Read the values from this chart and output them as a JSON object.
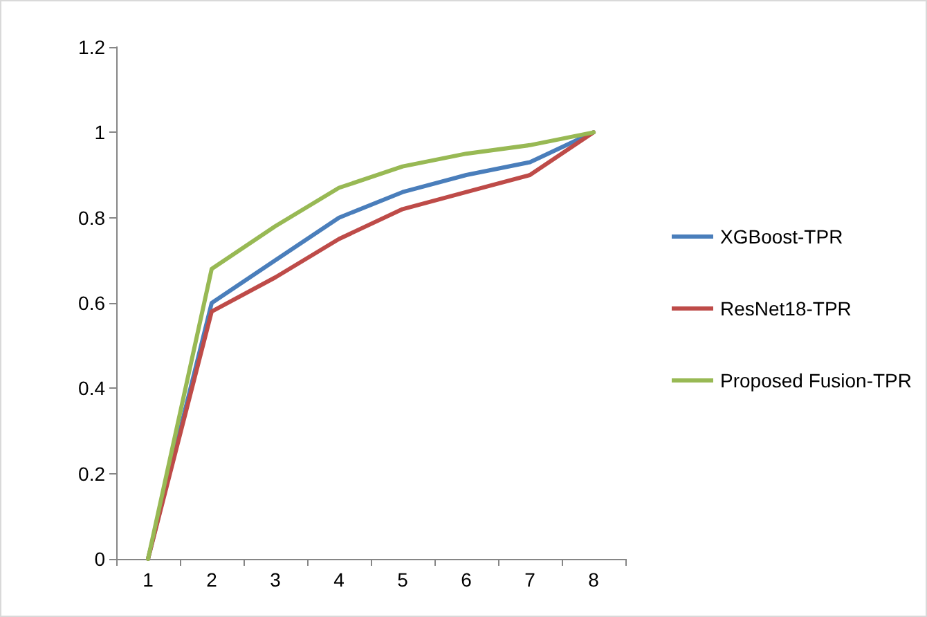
{
  "chart_data": {
    "type": "line",
    "categories": [
      "1",
      "2",
      "3",
      "4",
      "5",
      "6",
      "7",
      "8"
    ],
    "series": [
      {
        "name": "XGBoost-TPR",
        "color": "#4a7ebb",
        "values": [
          0,
          0.6,
          0.7,
          0.8,
          0.86,
          0.9,
          0.93,
          1.0
        ]
      },
      {
        "name": "ResNet18-TPR",
        "color": "#be4b48",
        "values": [
          0,
          0.58,
          0.66,
          0.75,
          0.82,
          0.86,
          0.9,
          1.0
        ]
      },
      {
        "name": "Proposed Fusion-TPR",
        "color": "#98b954",
        "values": [
          0,
          0.68,
          0.78,
          0.87,
          0.92,
          0.95,
          0.97,
          1.0
        ]
      }
    ],
    "ylim": [
      0,
      1.2
    ],
    "yticks": [
      0,
      0.2,
      0.4,
      0.6,
      0.8,
      1,
      1.2
    ],
    "grid": false,
    "legend": "right",
    "marker": "none",
    "line_style": "solid"
  }
}
